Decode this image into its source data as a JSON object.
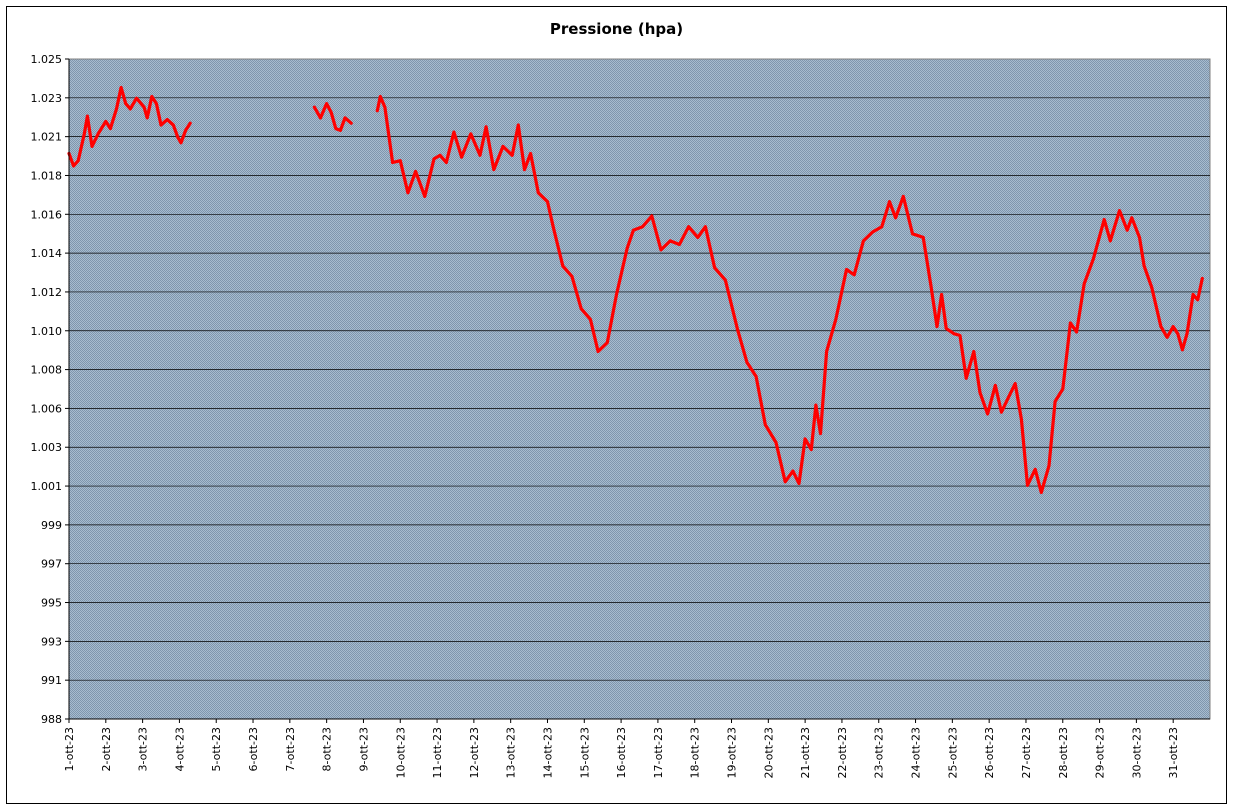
{
  "chart_data": {
    "type": "line",
    "title": "Pressione (hpa)",
    "xlabel": "",
    "ylabel": "",
    "ylim": [
      988,
      1025
    ],
    "y_ticks": [
      "988",
      "991",
      "993",
      "995",
      "997",
      "999",
      "1.001",
      "1.003",
      "1.006",
      "1.008",
      "1.010",
      "1.012",
      "1.014",
      "1.016",
      "1.018",
      "1.021",
      "1.023",
      "1.025"
    ],
    "x_ticks": [
      "1-ott-23",
      "2-ott-23",
      "3-ott-23",
      "4-ott-23",
      "5-ott-23",
      "6-ott-23",
      "7-ott-23",
      "8-ott-23",
      "9-ott-23",
      "10-ott-23",
      "11-ott-23",
      "12-ott-23",
      "13-ott-23",
      "14-ott-23",
      "15-ott-23",
      "16-ott-23",
      "17-ott-23",
      "18-ott-23",
      "19-ott-23",
      "20-ott-23",
      "21-ott-23",
      "22-ott-23",
      "23-ott-23",
      "24-ott-23",
      "25-ott-23",
      "26-ott-23",
      "27-ott-23",
      "28-ott-23",
      "29-ott-23",
      "30-ott-23",
      "31-ott-23"
    ],
    "x_range": [
      "2023-10-01",
      "2023-11-01"
    ],
    "grid": true,
    "line_color": "#ff0000",
    "plot_background": "#9fb6cd",
    "series": [
      {
        "segments": [
          [
            [
              "2023-10-01 00:00",
              1019.7
            ],
            [
              "2023-10-01 03:00",
              1019.0
            ],
            [
              "2023-10-01 06:00",
              1019.3
            ],
            [
              "2023-10-01 10:00",
              1020.8
            ],
            [
              "2023-10-01 12:00",
              1021.8
            ],
            [
              "2023-10-01 15:00",
              1020.1
            ],
            [
              "2023-10-01 19:00",
              1020.8
            ],
            [
              "2023-10-02 00:00",
              1021.5
            ],
            [
              "2023-10-02 03:00",
              1021.1
            ],
            [
              "2023-10-02 07:00",
              1022.2
            ],
            [
              "2023-10-02 10:00",
              1023.4
            ],
            [
              "2023-10-02 13:00",
              1022.5
            ],
            [
              "2023-10-02 16:00",
              1022.2
            ],
            [
              "2023-10-02 20:00",
              1022.8
            ],
            [
              "2023-10-03 01:00",
              1022.3
            ],
            [
              "2023-10-03 03:00",
              1021.7
            ],
            [
              "2023-10-03 06:00",
              1022.9
            ],
            [
              "2023-10-03 09:00",
              1022.5
            ],
            [
              "2023-10-03 12:00",
              1021.3
            ],
            [
              "2023-10-03 16:00",
              1021.6
            ],
            [
              "2023-10-03 20:00",
              1021.3
            ],
            [
              "2023-10-03 23:00",
              1020.6
            ],
            [
              "2023-10-04 01:00",
              1020.3
            ],
            [
              "2023-10-04 04:00",
              1021.0
            ],
            [
              "2023-10-04 07:00",
              1021.4
            ]
          ],
          [
            [
              "2023-10-07 16:00",
              1022.3
            ],
            [
              "2023-10-07 20:00",
              1021.7
            ],
            [
              "2023-10-08 00:00",
              1022.5
            ],
            [
              "2023-10-08 03:00",
              1022.0
            ],
            [
              "2023-10-08 06:00",
              1021.1
            ],
            [
              "2023-10-08 09:00",
              1021.0
            ],
            [
              "2023-10-08 12:00",
              1021.7
            ],
            [
              "2023-10-08 16:00",
              1021.4
            ]
          ],
          [
            [
              "2023-10-09 09:00",
              1022.1
            ],
            [
              "2023-10-09 11:00",
              1022.9
            ],
            [
              "2023-10-09 14:00",
              1022.3
            ],
            [
              "2023-10-09 19:00",
              1019.2
            ],
            [
              "2023-10-10 00:00",
              1019.3
            ],
            [
              "2023-10-10 05:00",
              1017.5
            ],
            [
              "2023-10-10 10:00",
              1018.7
            ],
            [
              "2023-10-10 16:00",
              1017.3
            ],
            [
              "2023-10-10 22:00",
              1019.4
            ],
            [
              "2023-10-11 02:00",
              1019.6
            ],
            [
              "2023-10-11 06:00",
              1019.2
            ],
            [
              "2023-10-11 11:00",
              1020.9
            ],
            [
              "2023-10-11 16:00",
              1019.5
            ],
            [
              "2023-10-11 22:00",
              1020.8
            ],
            [
              "2023-10-12 04:00",
              1019.6
            ],
            [
              "2023-10-12 08:00",
              1021.2
            ],
            [
              "2023-10-12 13:00",
              1018.8
            ],
            [
              "2023-10-12 19:00",
              1020.1
            ],
            [
              "2023-10-13 01:00",
              1019.6
            ],
            [
              "2023-10-13 05:00",
              1021.3
            ],
            [
              "2023-10-13 09:00",
              1018.8
            ],
            [
              "2023-10-13 13:00",
              1019.7
            ],
            [
              "2023-10-13 18:00",
              1017.5
            ],
            [
              "2023-10-14 00:00",
              1017.0
            ],
            [
              "2023-10-14 04:00",
              1015.5
            ],
            [
              "2023-10-14 10:00",
              1013.4
            ],
            [
              "2023-10-14 16:00",
              1012.8
            ],
            [
              "2023-10-14 22:00",
              1011.0
            ],
            [
              "2023-10-15 04:00",
              1010.4
            ],
            [
              "2023-10-15 09:00",
              1008.6
            ],
            [
              "2023-10-15 15:00",
              1009.1
            ],
            [
              "2023-10-15 21:00",
              1011.8
            ],
            [
              "2023-10-16 04:00",
              1014.4
            ],
            [
              "2023-10-16 08:00",
              1015.4
            ],
            [
              "2023-10-16 14:00",
              1015.6
            ],
            [
              "2023-10-16 20:00",
              1016.2
            ],
            [
              "2023-10-17 02:00",
              1014.3
            ],
            [
              "2023-10-17 08:00",
              1014.8
            ],
            [
              "2023-10-17 14:00",
              1014.6
            ],
            [
              "2023-10-17 20:00",
              1015.6
            ],
            [
              "2023-10-18 02:00",
              1015.0
            ],
            [
              "2023-10-18 07:00",
              1015.6
            ],
            [
              "2023-10-18 13:00",
              1013.3
            ],
            [
              "2023-10-18 20:00",
              1012.6
            ],
            [
              "2023-10-19 04:00",
              1009.8
            ],
            [
              "2023-10-19 10:00",
              1008.0
            ],
            [
              "2023-10-19 16:00",
              1007.2
            ],
            [
              "2023-10-19 22:00",
              1004.5
            ],
            [
              "2023-10-20 05:00",
              1003.5
            ],
            [
              "2023-10-20 11:00",
              1001.3
            ],
            [
              "2023-10-20 16:00",
              1001.9
            ],
            [
              "2023-10-20 20:00",
              1001.2
            ],
            [
              "2023-10-21 00:00",
              1003.7
            ],
            [
              "2023-10-21 04:00",
              1003.1
            ],
            [
              "2023-10-21 07:00",
              1005.6
            ],
            [
              "2023-10-21 10:00",
              1004.0
            ],
            [
              "2023-10-21 14:00",
              1008.6
            ],
            [
              "2023-10-21 20:00",
              1010.4
            ],
            [
              "2023-10-22 03:00",
              1013.2
            ],
            [
              "2023-10-22 08:00",
              1012.9
            ],
            [
              "2023-10-22 14:00",
              1014.8
            ],
            [
              "2023-10-22 20:00",
              1015.3
            ],
            [
              "2023-10-23 02:00",
              1015.6
            ],
            [
              "2023-10-23 07:00",
              1017.0
            ],
            [
              "2023-10-23 11:00",
              1016.1
            ],
            [
              "2023-10-23 16:00",
              1017.3
            ],
            [
              "2023-10-23 22:00",
              1015.2
            ],
            [
              "2023-10-24 05:00",
              1015.0
            ],
            [
              "2023-10-24 10:00",
              1012.3
            ],
            [
              "2023-10-24 14:00",
              1010.0
            ],
            [
              "2023-10-24 17:00",
              1011.8
            ],
            [
              "2023-10-24 20:00",
              1009.9
            ],
            [
              "2023-10-25 01:00",
              1009.6
            ],
            [
              "2023-10-25 05:00",
              1009.5
            ],
            [
              "2023-10-25 09:00",
              1007.1
            ],
            [
              "2023-10-25 14:00",
              1008.6
            ],
            [
              "2023-10-25 18:00",
              1006.3
            ],
            [
              "2023-10-25 23:00",
              1005.1
            ],
            [
              "2023-10-26 04:00",
              1006.7
            ],
            [
              "2023-10-26 08:00",
              1005.2
            ],
            [
              "2023-10-26 13:00",
              1006.1
            ],
            [
              "2023-10-26 17:00",
              1006.8
            ],
            [
              "2023-10-26 21:00",
              1004.8
            ],
            [
              "2023-10-27 01:00",
              1001.1
            ],
            [
              "2023-10-27 06:00",
              1002.0
            ],
            [
              "2023-10-27 10:00",
              1000.7
            ],
            [
              "2023-10-27 15:00",
              1002.2
            ],
            [
              "2023-10-27 19:00",
              1005.8
            ],
            [
              "2023-10-28 00:00",
              1006.5
            ],
            [
              "2023-10-28 05:00",
              1010.2
            ],
            [
              "2023-10-28 09:00",
              1009.7
            ],
            [
              "2023-10-28 14:00",
              1012.4
            ],
            [
              "2023-10-28 20:00",
              1013.8
            ],
            [
              "2023-10-29 03:00",
              1016.0
            ],
            [
              "2023-10-29 07:00",
              1014.8
            ],
            [
              "2023-10-29 13:00",
              1016.5
            ],
            [
              "2023-10-29 18:00",
              1015.4
            ],
            [
              "2023-10-29 21:00",
              1016.1
            ],
            [
              "2023-10-30 02:00",
              1015.0
            ],
            [
              "2023-10-30 05:00",
              1013.4
            ],
            [
              "2023-10-30 10:00",
              1012.2
            ],
            [
              "2023-10-30 16:00",
              1010.0
            ],
            [
              "2023-10-30 20:00",
              1009.4
            ],
            [
              "2023-10-31 00:00",
              1010.0
            ],
            [
              "2023-10-31 03:00",
              1009.6
            ],
            [
              "2023-10-31 06:00",
              1008.7
            ],
            [
              "2023-10-31 09:00",
              1009.6
            ],
            [
              "2023-10-31 13:00",
              1011.8
            ],
            [
              "2023-10-31 16:00",
              1011.5
            ],
            [
              "2023-10-31 19:00",
              1012.7
            ]
          ]
        ]
      }
    ]
  }
}
